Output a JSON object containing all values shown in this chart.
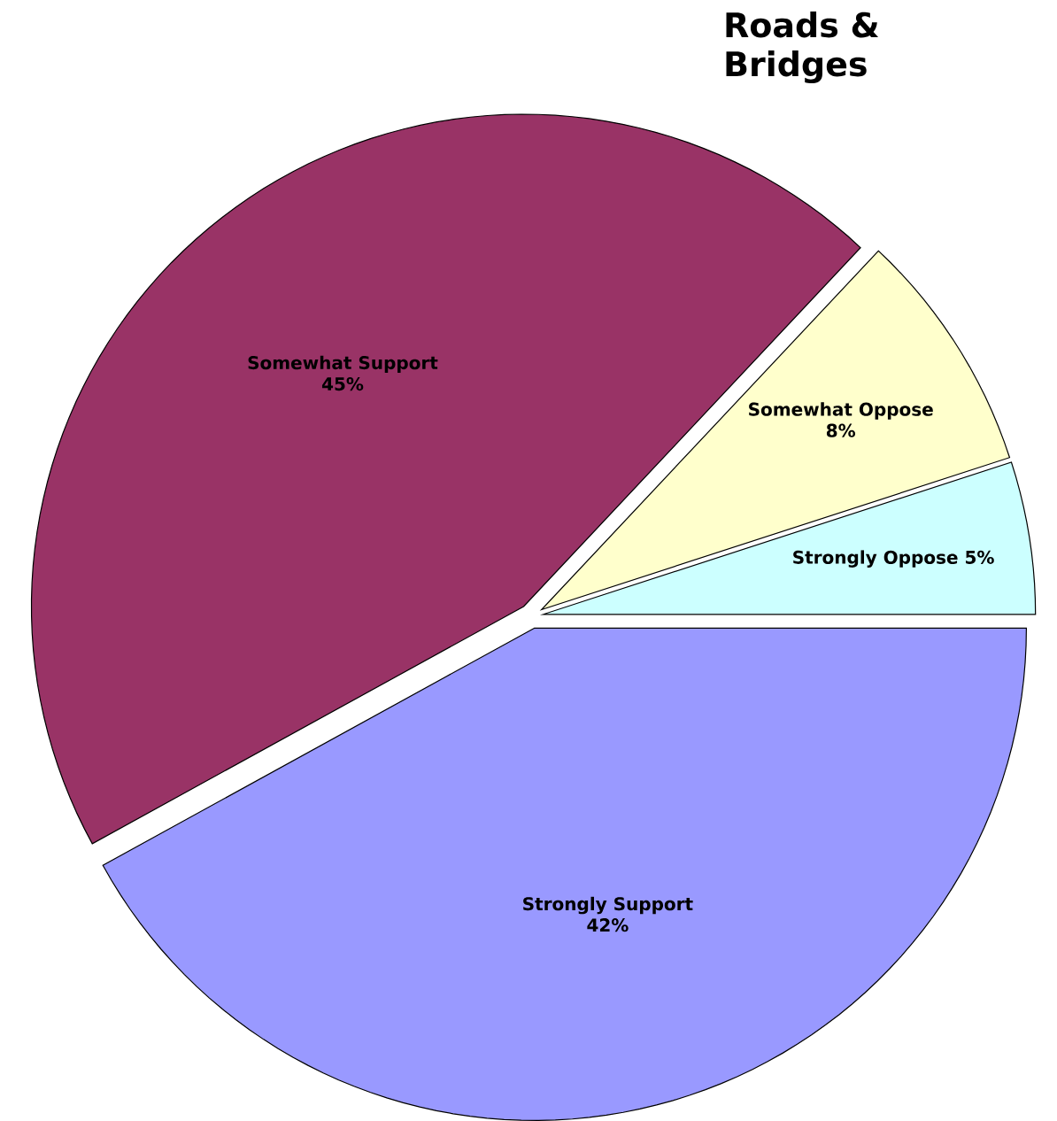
{
  "chart_data": {
    "type": "pie",
    "title": "Roads & Bridges",
    "categories": [
      "Strongly Oppose",
      "Somewhat Oppose",
      "Somewhat Support",
      "Strongly Support"
    ],
    "values": [
      5,
      8,
      45,
      42
    ],
    "colors": [
      "#ccffff",
      "#ffffcc",
      "#993366",
      "#9999ff"
    ],
    "value_labels": [
      "5%",
      "8%",
      "45%",
      "42%"
    ]
  }
}
